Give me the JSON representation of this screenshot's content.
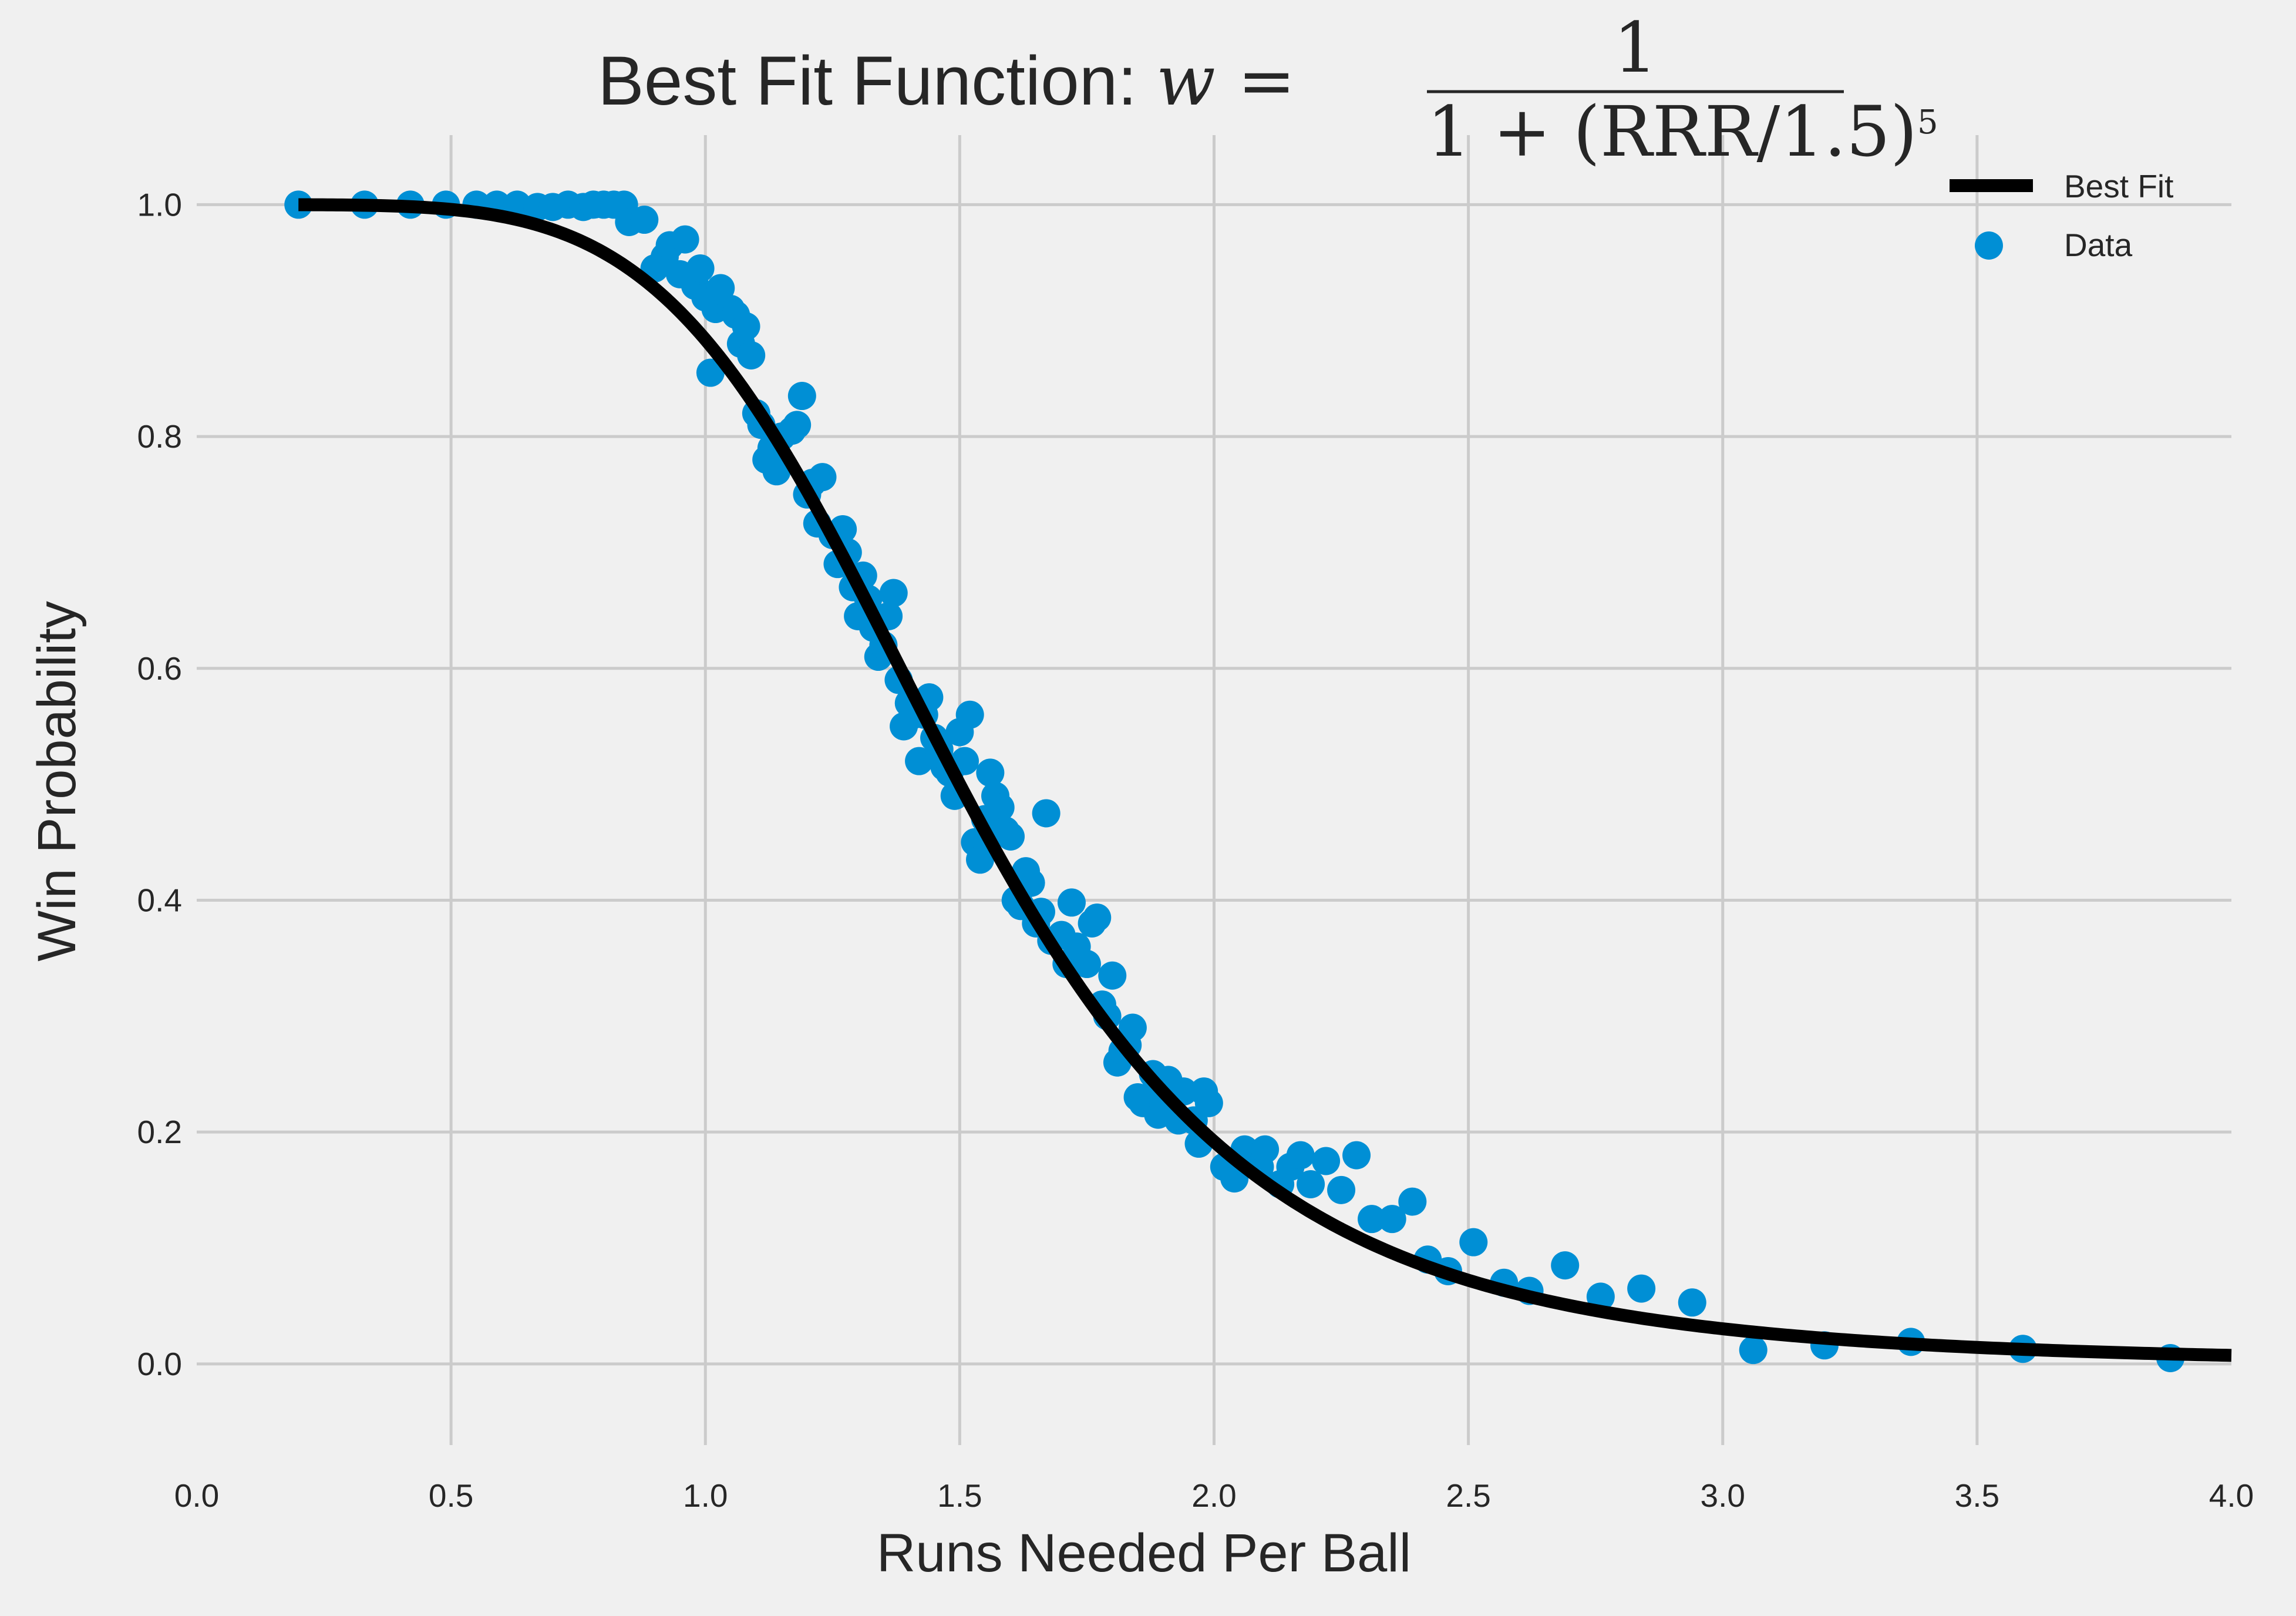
{
  "chart_data": {
    "type": "scatter",
    "title": {
      "prefix": "Best Fit Function: ",
      "var": "w",
      "eq": " = ",
      "numerator": "1",
      "denominator": "1 + (RRR/1.5)",
      "exponent": "5"
    },
    "xlabel": "Runs Needed Per Ball",
    "ylabel": "Win Probability",
    "xlim": [
      0.0,
      4.0
    ],
    "ylim": [
      -0.07,
      1.06
    ],
    "xticks": [
      0.0,
      0.5,
      1.0,
      1.5,
      2.0,
      2.5,
      3.0,
      3.5,
      4.0
    ],
    "xtick_labels": [
      "0.0",
      "0.5",
      "1.0",
      "1.5",
      "2.0",
      "2.5",
      "3.0",
      "3.5",
      "4.0"
    ],
    "yticks": [
      0.0,
      0.2,
      0.4,
      0.6,
      0.8,
      1.0
    ],
    "ytick_labels": [
      "0.0",
      "0.2",
      "0.4",
      "0.6",
      "0.8",
      "1.0"
    ],
    "grid": true,
    "legend": {
      "placement": "top-right",
      "entries": [
        "Best Fit",
        "Data"
      ]
    },
    "colors": {
      "data": "#008fd5",
      "fit": "#000000",
      "grid": "#cbcbcb",
      "background": "#f0f0f0"
    },
    "best_fit": {
      "name": "Best Fit",
      "formula": "1/(1+(x/1.5)^5)",
      "x_range": [
        0.2,
        4.0
      ]
    },
    "series": [
      {
        "name": "Data",
        "points": [
          [
            0.2,
            1.0
          ],
          [
            0.33,
            1.0
          ],
          [
            0.42,
            1.0
          ],
          [
            0.49,
            1.0
          ],
          [
            0.55,
            1.0
          ],
          [
            0.59,
            1.0
          ],
          [
            0.63,
            1.0
          ],
          [
            0.67,
            0.998
          ],
          [
            0.7,
            0.998
          ],
          [
            0.73,
            1.0
          ],
          [
            0.76,
            0.998
          ],
          [
            0.78,
            1.0
          ],
          [
            0.8,
            1.0
          ],
          [
            0.82,
            1.0
          ],
          [
            0.84,
            1.0
          ],
          [
            0.85,
            0.985
          ],
          [
            0.88,
            0.987
          ],
          [
            0.9,
            0.945
          ],
          [
            0.92,
            0.955
          ],
          [
            0.93,
            0.965
          ],
          [
            0.95,
            0.94
          ],
          [
            0.96,
            0.97
          ],
          [
            0.98,
            0.93
          ],
          [
            0.99,
            0.945
          ],
          [
            1.0,
            0.92
          ],
          [
            1.01,
            0.855
          ],
          [
            1.02,
            0.91
          ],
          [
            1.03,
            0.928
          ],
          [
            1.05,
            0.91
          ],
          [
            1.06,
            0.905
          ],
          [
            1.07,
            0.88
          ],
          [
            1.08,
            0.895
          ],
          [
            1.09,
            0.87
          ],
          [
            1.1,
            0.82
          ],
          [
            1.11,
            0.81
          ],
          [
            1.12,
            0.78
          ],
          [
            1.13,
            0.79
          ],
          [
            1.14,
            0.77
          ],
          [
            1.15,
            0.8
          ],
          [
            1.17,
            0.805
          ],
          [
            1.18,
            0.81
          ],
          [
            1.19,
            0.835
          ],
          [
            1.2,
            0.75
          ],
          [
            1.21,
            0.76
          ],
          [
            1.22,
            0.725
          ],
          [
            1.23,
            0.765
          ],
          [
            1.25,
            0.715
          ],
          [
            1.26,
            0.69
          ],
          [
            1.27,
            0.72
          ],
          [
            1.28,
            0.7
          ],
          [
            1.29,
            0.67
          ],
          [
            1.3,
            0.645
          ],
          [
            1.31,
            0.68
          ],
          [
            1.32,
            0.66
          ],
          [
            1.33,
            0.635
          ],
          [
            1.34,
            0.61
          ],
          [
            1.35,
            0.62
          ],
          [
            1.36,
            0.645
          ],
          [
            1.37,
            0.665
          ],
          [
            1.38,
            0.59
          ],
          [
            1.39,
            0.55
          ],
          [
            1.4,
            0.57
          ],
          [
            1.41,
            0.56
          ],
          [
            1.42,
            0.52
          ],
          [
            1.43,
            0.56
          ],
          [
            1.44,
            0.575
          ],
          [
            1.45,
            0.54
          ],
          [
            1.46,
            0.53
          ],
          [
            1.47,
            0.515
          ],
          [
            1.48,
            0.51
          ],
          [
            1.49,
            0.49
          ],
          [
            1.5,
            0.545
          ],
          [
            1.51,
            0.52
          ],
          [
            1.52,
            0.56
          ],
          [
            1.53,
            0.45
          ],
          [
            1.54,
            0.435
          ],
          [
            1.55,
            0.47
          ],
          [
            1.56,
            0.51
          ],
          [
            1.57,
            0.49
          ],
          [
            1.58,
            0.48
          ],
          [
            1.59,
            0.46
          ],
          [
            1.6,
            0.455
          ],
          [
            1.61,
            0.4
          ],
          [
            1.62,
            0.395
          ],
          [
            1.63,
            0.425
          ],
          [
            1.64,
            0.415
          ],
          [
            1.65,
            0.38
          ],
          [
            1.66,
            0.39
          ],
          [
            1.67,
            0.475
          ],
          [
            1.68,
            0.365
          ],
          [
            1.7,
            0.37
          ],
          [
            1.71,
            0.345
          ],
          [
            1.72,
            0.398
          ],
          [
            1.73,
            0.36
          ],
          [
            1.75,
            0.345
          ],
          [
            1.76,
            0.38
          ],
          [
            1.77,
            0.385
          ],
          [
            1.78,
            0.31
          ],
          [
            1.79,
            0.3
          ],
          [
            1.8,
            0.335
          ],
          [
            1.81,
            0.26
          ],
          [
            1.82,
            0.27
          ],
          [
            1.83,
            0.275
          ],
          [
            1.84,
            0.29
          ],
          [
            1.85,
            0.23
          ],
          [
            1.86,
            0.225
          ],
          [
            1.87,
            0.23
          ],
          [
            1.88,
            0.25
          ],
          [
            1.89,
            0.215
          ],
          [
            1.9,
            0.22
          ],
          [
            1.91,
            0.245
          ],
          [
            1.93,
            0.21
          ],
          [
            1.94,
            0.235
          ],
          [
            1.96,
            0.21
          ],
          [
            1.97,
            0.19
          ],
          [
            1.98,
            0.235
          ],
          [
            1.99,
            0.225
          ],
          [
            2.02,
            0.17
          ],
          [
            2.04,
            0.16
          ],
          [
            2.06,
            0.185
          ],
          [
            2.09,
            0.17
          ],
          [
            2.1,
            0.185
          ],
          [
            2.13,
            0.155
          ],
          [
            2.15,
            0.17
          ],
          [
            2.17,
            0.18
          ],
          [
            2.19,
            0.155
          ],
          [
            2.22,
            0.175
          ],
          [
            2.25,
            0.15
          ],
          [
            2.28,
            0.18
          ],
          [
            2.31,
            0.125
          ],
          [
            2.35,
            0.125
          ],
          [
            2.39,
            0.14
          ],
          [
            2.42,
            0.09
          ],
          [
            2.46,
            0.08
          ],
          [
            2.51,
            0.105
          ],
          [
            2.57,
            0.07
          ],
          [
            2.62,
            0.063
          ],
          [
            2.69,
            0.085
          ],
          [
            2.76,
            0.058
          ],
          [
            2.84,
            0.065
          ],
          [
            2.94,
            0.053
          ],
          [
            3.06,
            0.012
          ],
          [
            3.2,
            0.016
          ],
          [
            3.37,
            0.019
          ],
          [
            3.59,
            0.013
          ],
          [
            3.88,
            0.005
          ]
        ]
      }
    ]
  }
}
